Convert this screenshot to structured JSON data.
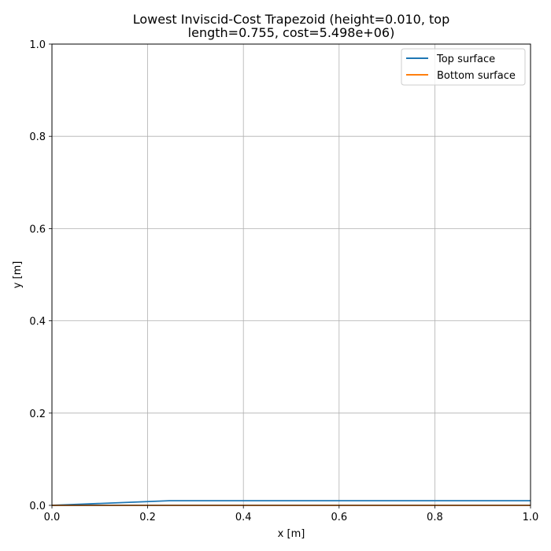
{
  "chart_data": {
    "type": "line",
    "title_lines": [
      "Lowest Inviscid-Cost Trapezoid (height=0.010, top",
      "length=0.755, cost=5.498e+06)"
    ],
    "xlabel": "x [m]",
    "ylabel": "y [m]",
    "xlim": [
      0.0,
      1.0
    ],
    "ylim": [
      0.0,
      1.0
    ],
    "xticks": [
      0.0,
      0.2,
      0.4,
      0.6,
      0.8,
      1.0
    ],
    "yticks": [
      0.0,
      0.2,
      0.4,
      0.6,
      0.8,
      1.0
    ],
    "xtick_labels": [
      "0.0",
      "0.2",
      "0.4",
      "0.6",
      "0.8",
      "1.0"
    ],
    "ytick_labels": [
      "0.0",
      "0.2",
      "0.4",
      "0.6",
      "0.8",
      "1.0"
    ],
    "grid": true,
    "legend_position": "top-right",
    "series": [
      {
        "name": "Top surface",
        "color": "#1f77b4",
        "x": [
          0.0,
          0.245,
          1.0
        ],
        "y": [
          0.0,
          0.01,
          0.01
        ]
      },
      {
        "name": "Bottom surface",
        "color": "#ff7f0e",
        "x": [
          0.0,
          1.0
        ],
        "y": [
          0.0,
          0.0
        ]
      }
    ]
  }
}
